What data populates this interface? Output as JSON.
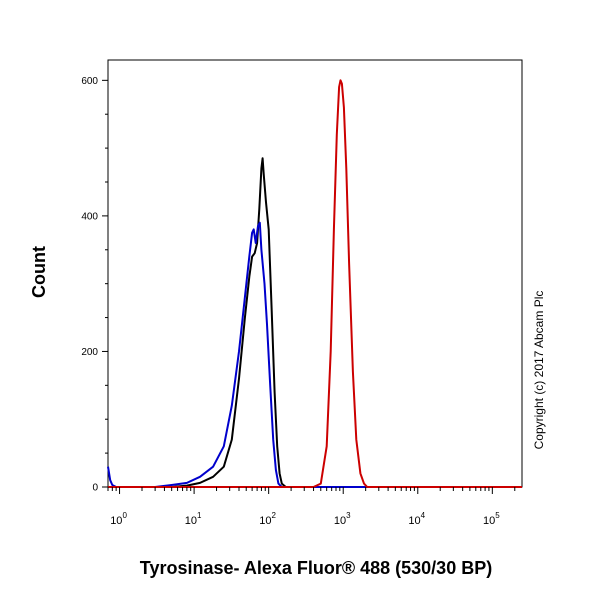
{
  "chart_data": {
    "type": "line",
    "xlabel": "Tyrosinase- Alexa Fluor® 488 (530/30 BP)",
    "ylabel": "Count",
    "x_scale": "log",
    "xlim": [
      0.7,
      250000
    ],
    "ylim": [
      0,
      630
    ],
    "y_ticks": [
      0,
      200,
      400,
      600
    ],
    "x_ticks": [
      {
        "value": 1,
        "base": "10",
        "exp": "0"
      },
      {
        "value": 10,
        "base": "10",
        "exp": "1"
      },
      {
        "value": 100,
        "base": "10",
        "exp": "2"
      },
      {
        "value": 1000,
        "base": "10",
        "exp": "3"
      },
      {
        "value": 10000,
        "base": "10",
        "exp": "4"
      },
      {
        "value": 100000,
        "base": "10",
        "exp": "5"
      }
    ],
    "grid": false,
    "annotation": "Copyright (c) 2017 Abcam Plc",
    "series": [
      {
        "color": "#000000",
        "points": [
          [
            0.7,
            0
          ],
          [
            5,
            0
          ],
          [
            8,
            2
          ],
          [
            12,
            6
          ],
          [
            18,
            15
          ],
          [
            25,
            30
          ],
          [
            32,
            70
          ],
          [
            40,
            160
          ],
          [
            48,
            250
          ],
          [
            55,
            310
          ],
          [
            60,
            340
          ],
          [
            65,
            345
          ],
          [
            70,
            360
          ],
          [
            75,
            410
          ],
          [
            80,
            470
          ],
          [
            83,
            485
          ],
          [
            86,
            460
          ],
          [
            92,
            420
          ],
          [
            100,
            380
          ],
          [
            110,
            260
          ],
          [
            120,
            140
          ],
          [
            130,
            60
          ],
          [
            140,
            20
          ],
          [
            150,
            5
          ],
          [
            170,
            0
          ],
          [
            250000,
            0
          ]
        ]
      },
      {
        "color": "#0000cc",
        "points": [
          [
            0.7,
            30
          ],
          [
            0.75,
            10
          ],
          [
            0.8,
            3
          ],
          [
            0.9,
            0
          ],
          [
            3,
            0
          ],
          [
            5,
            3
          ],
          [
            8,
            6
          ],
          [
            12,
            15
          ],
          [
            18,
            30
          ],
          [
            25,
            60
          ],
          [
            32,
            120
          ],
          [
            40,
            200
          ],
          [
            48,
            280
          ],
          [
            55,
            340
          ],
          [
            60,
            375
          ],
          [
            63,
            380
          ],
          [
            67,
            360
          ],
          [
            72,
            385
          ],
          [
            76,
            390
          ],
          [
            80,
            350
          ],
          [
            88,
            300
          ],
          [
            95,
            240
          ],
          [
            105,
            150
          ],
          [
            115,
            70
          ],
          [
            125,
            25
          ],
          [
            135,
            5
          ],
          [
            150,
            0
          ],
          [
            250000,
            0
          ]
        ]
      },
      {
        "color": "#cc0000",
        "points": [
          [
            0.7,
            0
          ],
          [
            400,
            0
          ],
          [
            500,
            5
          ],
          [
            600,
            60
          ],
          [
            680,
            200
          ],
          [
            750,
            380
          ],
          [
            820,
            520
          ],
          [
            880,
            590
          ],
          [
            920,
            600
          ],
          [
            960,
            595
          ],
          [
            1020,
            560
          ],
          [
            1100,
            470
          ],
          [
            1200,
            330
          ],
          [
            1350,
            170
          ],
          [
            1500,
            70
          ],
          [
            1700,
            20
          ],
          [
            1900,
            5
          ],
          [
            2100,
            0
          ],
          [
            250000,
            0
          ]
        ]
      }
    ]
  }
}
